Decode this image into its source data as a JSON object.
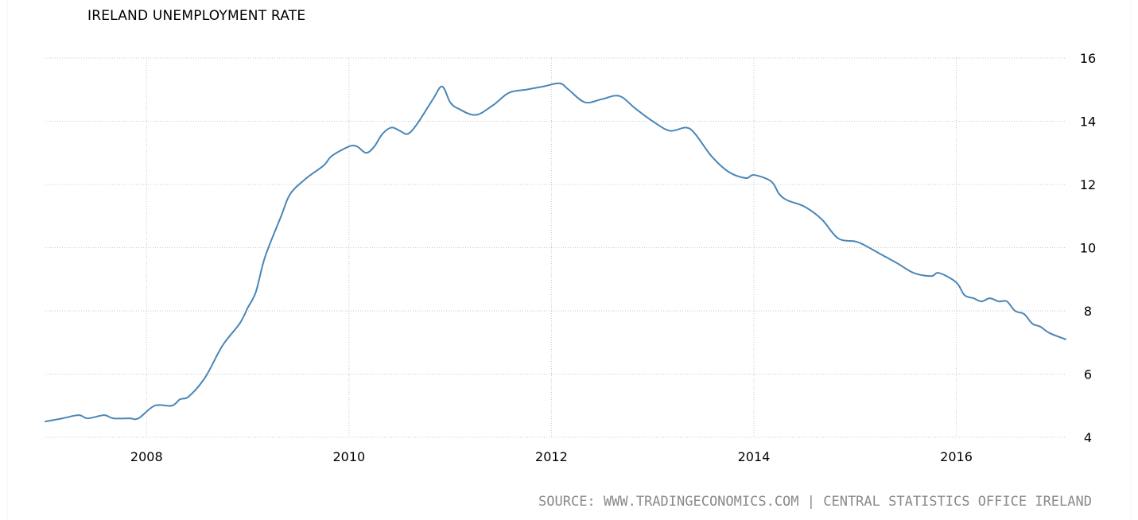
{
  "chart_data": {
    "type": "line",
    "title": "IRELAND UNEMPLOYMENT RATE",
    "xlabel": "",
    "ylabel": "",
    "xlim": [
      2007.0,
      2017.08
    ],
    "ylim": [
      4,
      16
    ],
    "y_ticks": [
      4,
      6,
      8,
      10,
      12,
      14,
      16
    ],
    "x_ticks": [
      {
        "value": 2008,
        "label": "2008"
      },
      {
        "value": 2010,
        "label": "2010"
      },
      {
        "value": 2012,
        "label": "2012"
      },
      {
        "value": 2014,
        "label": "2014"
      },
      {
        "value": 2016,
        "label": "2016"
      }
    ],
    "grid": true,
    "line_color": "#4a86b7",
    "series": [
      {
        "name": "",
        "points": [
          [
            2007.0,
            4.5
          ],
          [
            2007.17,
            4.6
          ],
          [
            2007.33,
            4.7
          ],
          [
            2007.42,
            4.6
          ],
          [
            2007.58,
            4.7
          ],
          [
            2007.67,
            4.6
          ],
          [
            2007.83,
            4.6
          ],
          [
            2007.92,
            4.6
          ],
          [
            2008.08,
            5.0
          ],
          [
            2008.25,
            5.0
          ],
          [
            2008.33,
            5.2
          ],
          [
            2008.42,
            5.3
          ],
          [
            2008.58,
            5.9
          ],
          [
            2008.75,
            6.9
          ],
          [
            2008.92,
            7.6
          ],
          [
            2009.0,
            8.1
          ],
          [
            2009.08,
            8.6
          ],
          [
            2009.17,
            9.7
          ],
          [
            2009.33,
            11.0
          ],
          [
            2009.42,
            11.7
          ],
          [
            2009.58,
            12.2
          ],
          [
            2009.75,
            12.6
          ],
          [
            2009.83,
            12.9
          ],
          [
            2010.0,
            13.2
          ],
          [
            2010.08,
            13.2
          ],
          [
            2010.17,
            13.0
          ],
          [
            2010.25,
            13.2
          ],
          [
            2010.33,
            13.6
          ],
          [
            2010.42,
            13.8
          ],
          [
            2010.5,
            13.7
          ],
          [
            2010.58,
            13.6
          ],
          [
            2010.67,
            13.9
          ],
          [
            2010.83,
            14.7
          ],
          [
            2010.92,
            15.1
          ],
          [
            2011.0,
            14.6
          ],
          [
            2011.08,
            14.4
          ],
          [
            2011.25,
            14.2
          ],
          [
            2011.42,
            14.5
          ],
          [
            2011.58,
            14.9
          ],
          [
            2011.75,
            15.0
          ],
          [
            2011.92,
            15.1
          ],
          [
            2012.08,
            15.2
          ],
          [
            2012.17,
            15.0
          ],
          [
            2012.33,
            14.6
          ],
          [
            2012.5,
            14.7
          ],
          [
            2012.67,
            14.8
          ],
          [
            2012.83,
            14.4
          ],
          [
            2013.0,
            14.0
          ],
          [
            2013.17,
            13.7
          ],
          [
            2013.33,
            13.8
          ],
          [
            2013.42,
            13.6
          ],
          [
            2013.58,
            12.9
          ],
          [
            2013.75,
            12.4
          ],
          [
            2013.92,
            12.2
          ],
          [
            2014.0,
            12.3
          ],
          [
            2014.17,
            12.1
          ],
          [
            2014.25,
            11.7
          ],
          [
            2014.33,
            11.5
          ],
          [
            2014.5,
            11.3
          ],
          [
            2014.67,
            10.9
          ],
          [
            2014.83,
            10.3
          ],
          [
            2015.0,
            10.2
          ],
          [
            2015.08,
            10.1
          ],
          [
            2015.25,
            9.8
          ],
          [
            2015.42,
            9.5
          ],
          [
            2015.58,
            9.2
          ],
          [
            2015.75,
            9.1
          ],
          [
            2015.83,
            9.2
          ],
          [
            2016.0,
            8.9
          ],
          [
            2016.08,
            8.5
          ],
          [
            2016.17,
            8.4
          ],
          [
            2016.25,
            8.3
          ],
          [
            2016.33,
            8.4
          ],
          [
            2016.42,
            8.3
          ],
          [
            2016.5,
            8.3
          ],
          [
            2016.58,
            8.0
          ],
          [
            2016.67,
            7.9
          ],
          [
            2016.75,
            7.6
          ],
          [
            2016.83,
            7.5
          ],
          [
            2016.92,
            7.3
          ],
          [
            2017.08,
            7.1
          ]
        ]
      }
    ]
  },
  "source_text": "SOURCE: WWW.TRADINGECONOMICS.COM | CENTRAL STATISTICS OFFICE IRELAND"
}
